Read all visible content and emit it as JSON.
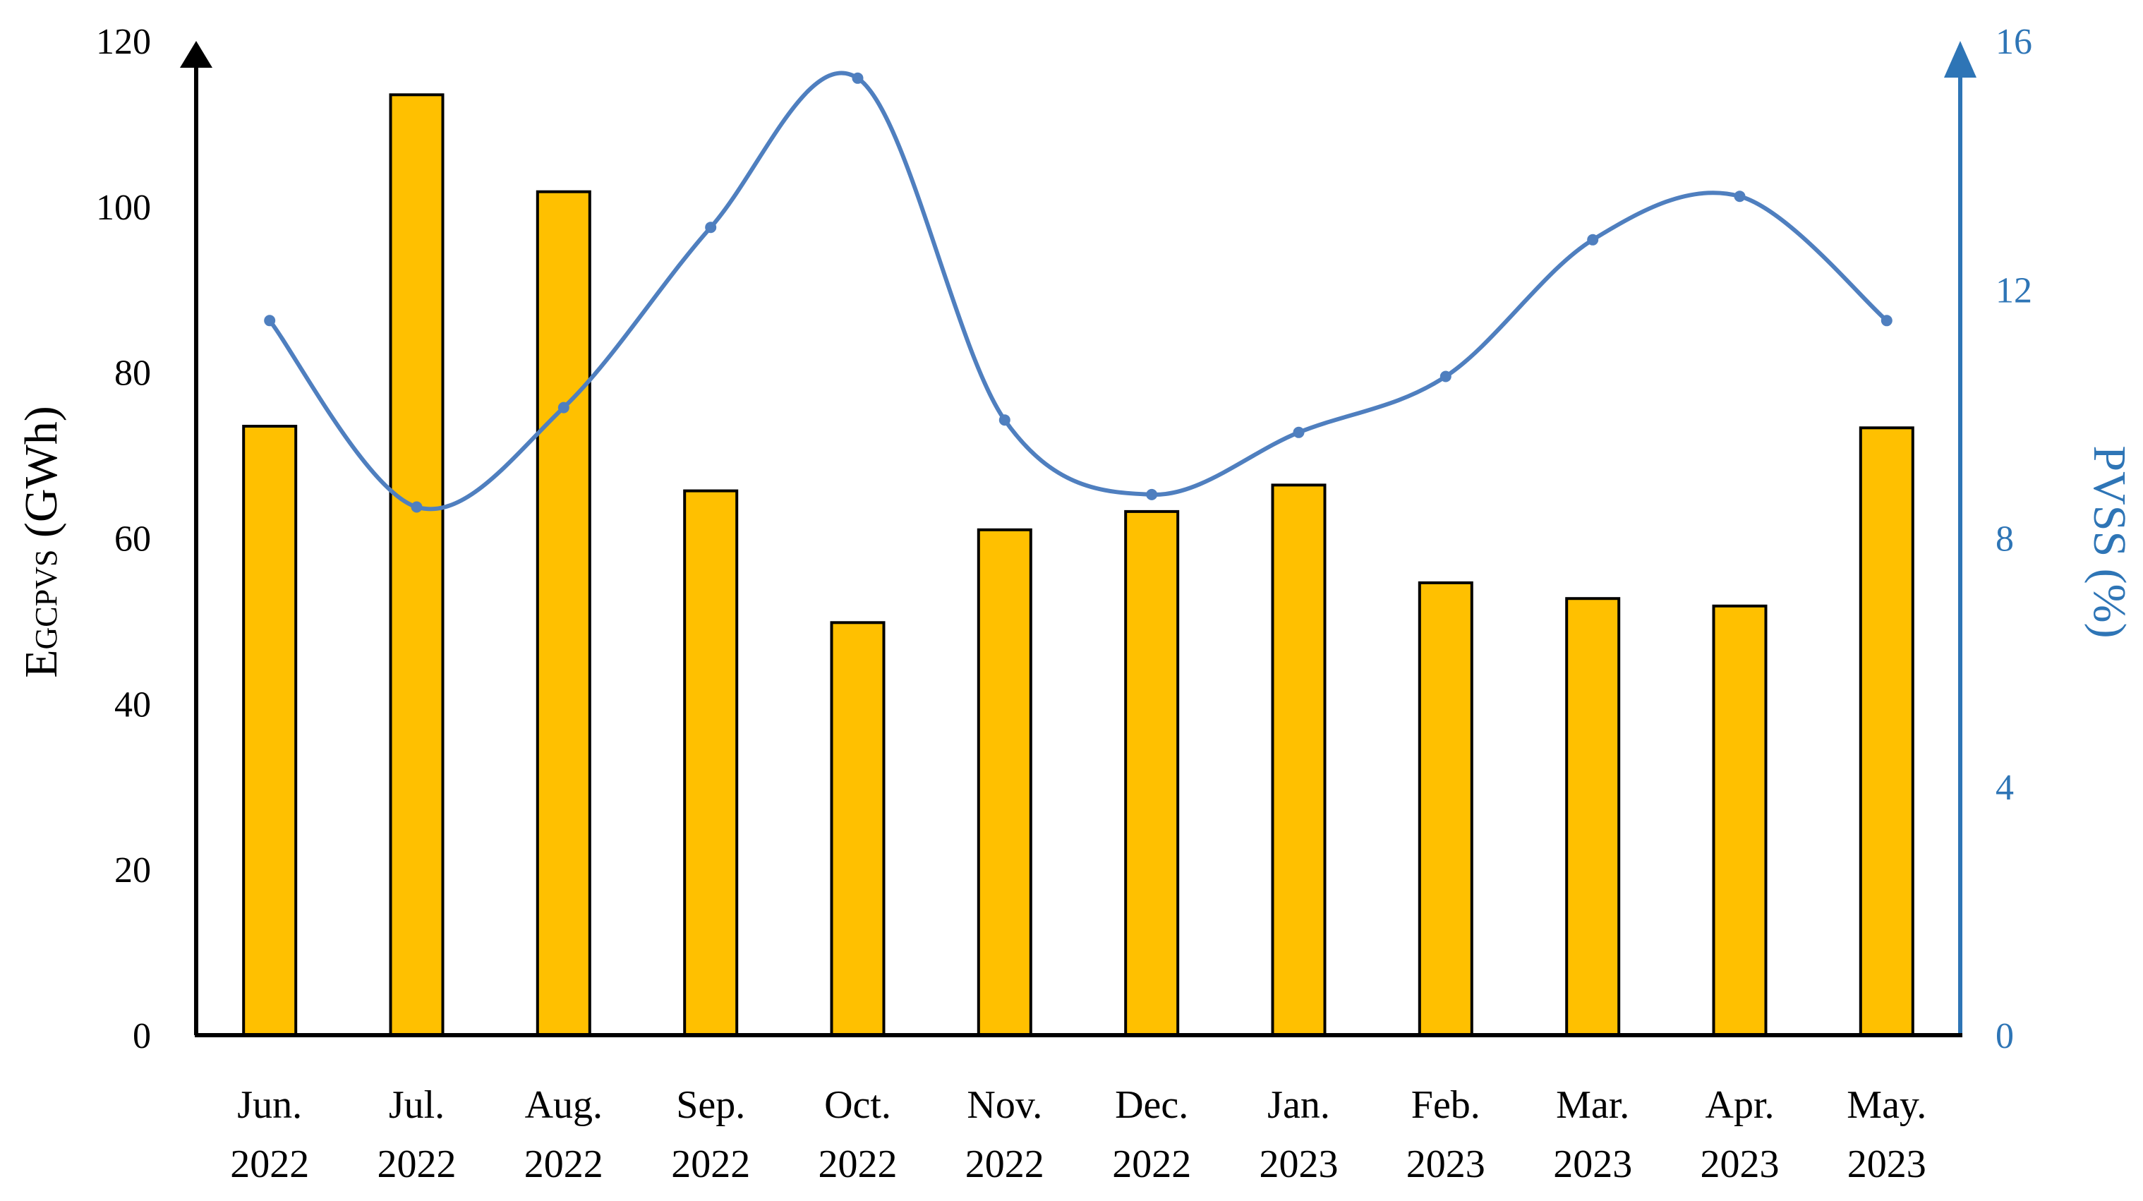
{
  "chart_data": {
    "type": "bar",
    "categories": [
      [
        "Jun.",
        "2022"
      ],
      [
        "Jul.",
        "2022"
      ],
      [
        "Aug.",
        "2022"
      ],
      [
        "Sep.",
        "2022"
      ],
      [
        "Oct.",
        "2022"
      ],
      [
        "Nov.",
        "2022"
      ],
      [
        "Dec.",
        "2022"
      ],
      [
        "Jan.",
        "2023"
      ],
      [
        "Feb.",
        "2023"
      ],
      [
        "Mar.",
        "2023"
      ],
      [
        "Apr.",
        "2023"
      ],
      [
        "May.",
        "2023"
      ]
    ],
    "series": [
      {
        "axis": "left",
        "type": "bar",
        "color": "#FFC000",
        "values": [
          73.5,
          113.5,
          101.8,
          65.7,
          49.8,
          61.0,
          63.2,
          66.4,
          54.6,
          52.7,
          51.8,
          73.3
        ]
      },
      {
        "axis": "right",
        "type": "line",
        "smooth": true,
        "color": "#4F7FBF",
        "values": [
          11.5,
          8.5,
          10.1,
          13.0,
          15.4,
          9.9,
          8.7,
          9.7,
          10.6,
          12.8,
          13.5,
          11.5
        ]
      }
    ],
    "y_left": {
      "label_main": "E",
      "label_sub": "GCPVS",
      "label_unit": " (GWh)",
      "range": [
        0,
        120
      ],
      "ticks": [
        "0",
        "20",
        "40",
        "60",
        "80",
        "100",
        "120"
      ],
      "color": "#000000"
    },
    "y_right": {
      "label": "PVSS (%)",
      "range": [
        0,
        16
      ],
      "ticks": [
        "0",
        "4",
        "8",
        "12",
        "16"
      ],
      "color": "#2E75B6"
    },
    "grid": false,
    "legend": "none"
  }
}
